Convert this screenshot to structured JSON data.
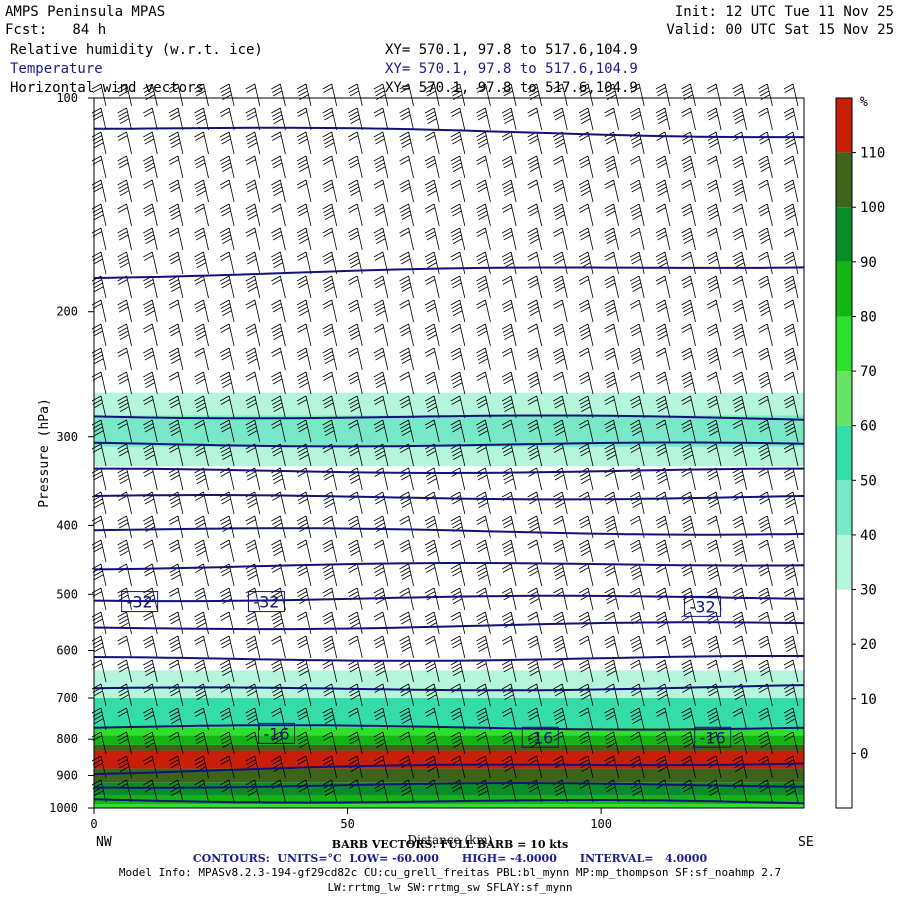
{
  "header": {
    "model_title": "AMPS Peninsula MPAS",
    "forecast": "Fcst:   84 h",
    "init": "Init: 12 UTC Tue 11 Nov 25",
    "valid": "Valid: 00 UTC Sat 15 Nov 25",
    "fields": [
      {
        "name": "Relative humidity (w.r.t. ice)",
        "xy": "XY= 570.1, 97.8 to 517.6,104.9",
        "color": "#000000"
      },
      {
        "name": "Temperature",
        "xy": "XY= 570.1, 97.8 to 517.6,104.9",
        "color": "#1c1c8c"
      },
      {
        "name": "Horizontal wind vectors",
        "xy": "XY= 570.1, 97.8 to 517.6,104.9",
        "color": "#000000"
      }
    ]
  },
  "footer": {
    "barb_note": "BARB VECTORS: FULL BARB = 10 kts",
    "xlabel_overlap": "Distance (km)",
    "contours": "CONTOURS:  UNITS=°C  LOW= -60.000      HIGH= -4.0000      INTERVAL=   4.0000",
    "model_info": "Model Info: MPASv8.2.3-194-gf29cd82c CU:cu_grell_freitas PBL:bl_mynn MP:mp_thompson SF:sf_noahmp 2.7",
    "model_info2": "LW:rrtmg_lw SW:rrtmg_sw SFLAY:sf_mynn"
  },
  "chart_data": {
    "type": "heatmap",
    "subtype": "vertical cross-section with contours and wind barbs",
    "xlabel": "Distance (km)",
    "ylabel": "Pressure (hPa)",
    "x_range": [
      0,
      140
    ],
    "y_range": [
      1000,
      100
    ],
    "y_scale": "log",
    "x_ticks": [
      0,
      50,
      100
    ],
    "y_ticks": [
      100,
      200,
      300,
      400,
      500,
      600,
      700,
      800,
      900,
      1000
    ],
    "x_end_labels": {
      "left": "NW",
      "right": "SE"
    },
    "colorbar": {
      "unit": "%",
      "tick_labels": [
        "110",
        "100",
        "90",
        "80",
        "70",
        "60",
        "50",
        "40",
        "30",
        "20",
        "10",
        "0"
      ],
      "bins": [
        {
          "min": -10,
          "max": 0,
          "color": "#ffffff"
        },
        {
          "min": 0,
          "max": 10,
          "color": "#ffffff"
        },
        {
          "min": 10,
          "max": 20,
          "color": "#ffffff"
        },
        {
          "min": 20,
          "max": 30,
          "color": "#ffffff"
        },
        {
          "min": 30,
          "max": 40,
          "color": "#b4f5dc"
        },
        {
          "min": 40,
          "max": 50,
          "color": "#78e8c8"
        },
        {
          "min": 50,
          "max": 60,
          "color": "#34dca8"
        },
        {
          "min": 60,
          "max": 70,
          "color": "#66e466"
        },
        {
          "min": 70,
          "max": 80,
          "color": "#2ee02e"
        },
        {
          "min": 80,
          "max": 90,
          "color": "#14b414"
        },
        {
          "min": 90,
          "max": 100,
          "color": "#0a8c2a"
        },
        {
          "min": 100,
          "max": 110,
          "color": "#3c641a"
        },
        {
          "min": 110,
          "max": 120,
          "color": "#c81e0a"
        }
      ]
    },
    "rh_layers": [
      {
        "p": [
          1000,
          988
        ],
        "rh": 72
      },
      {
        "p": [
          988,
          960
        ],
        "rh": 85
      },
      {
        "p": [
          960,
          920
        ],
        "rh": 95
      },
      {
        "p": [
          920,
          880
        ],
        "rh": 100
      },
      {
        "p": [
          880,
          830
        ],
        "rh": 112
      },
      {
        "p": [
          830,
          815
        ],
        "rh": 100
      },
      {
        "p": [
          815,
          790
        ],
        "rh": 88
      },
      {
        "p": [
          790,
          770
        ],
        "rh": 72
      },
      {
        "p": [
          770,
          700
        ],
        "rh": 52
      },
      {
        "p": [
          700,
          640
        ],
        "rh": 38
      },
      {
        "p": [
          330,
          310
        ],
        "rh": 38
      },
      {
        "p": [
          310,
          280
        ],
        "rh": 45
      },
      {
        "p": [
          280,
          260
        ],
        "rh": 38
      }
    ],
    "temperature_contours": [
      {
        "p_left": 972,
        "p_right": 985
      },
      {
        "p_left": 930,
        "p_right": 928
      },
      {
        "p_left": 890,
        "p_right": 860
      },
      {
        "p_left": 770,
        "p_right": 770
      },
      {
        "p_left": 682,
        "p_right": 675
      },
      {
        "p_left": 617,
        "p_right": 615
      },
      {
        "p_left": 558,
        "p_right": 550
      },
      {
        "p_left": 508,
        "p_right": 505
      },
      {
        "p_left": 458,
        "p_right": 452
      },
      {
        "p_left": 405,
        "p_right": 410
      },
      {
        "p_left": 365,
        "p_right": 365
      },
      {
        "p_left": 335,
        "p_right": 335
      },
      {
        "p_left": 307,
        "p_right": 308
      },
      {
        "p_left": 280,
        "p_right": 283
      },
      {
        "p_left": 178,
        "p_right": 172
      },
      {
        "p_left": 110,
        "p_right": 113
      }
    ],
    "contour_labels": [
      {
        "x": 9,
        "p": 512,
        "text": "-32"
      },
      {
        "x": 34,
        "p": 512,
        "text": "-32"
      },
      {
        "x": 120,
        "p": 520,
        "text": "-32"
      },
      {
        "x": 36,
        "p": 785,
        "text": "-16"
      },
      {
        "x": 88,
        "p": 795,
        "text": "-16"
      },
      {
        "x": 122,
        "p": 795,
        "text": "-16"
      }
    ],
    "wind_barbs": {
      "columns": 28,
      "levels": 30,
      "description": "mostly westerly flow, 20-40 kts"
    }
  }
}
